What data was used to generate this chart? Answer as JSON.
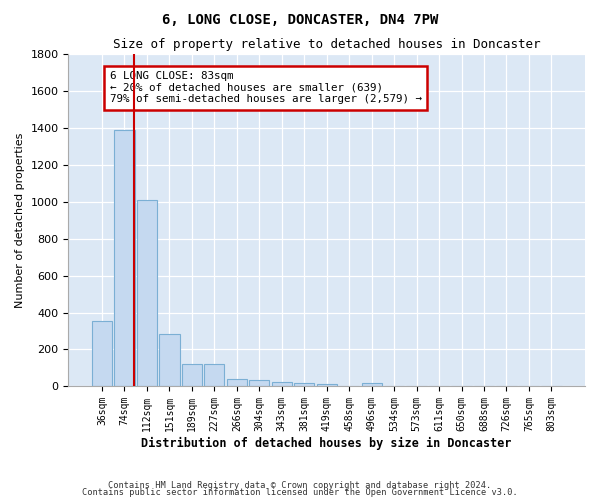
{
  "title": "6, LONG CLOSE, DONCASTER, DN4 7PW",
  "subtitle": "Size of property relative to detached houses in Doncaster",
  "xlabel": "Distribution of detached houses by size in Doncaster",
  "ylabel": "Number of detached properties",
  "categories": [
    "36sqm",
    "74sqm",
    "112sqm",
    "151sqm",
    "189sqm",
    "227sqm",
    "266sqm",
    "304sqm",
    "343sqm",
    "381sqm",
    "419sqm",
    "458sqm",
    "496sqm",
    "534sqm",
    "573sqm",
    "611sqm",
    "650sqm",
    "688sqm",
    "726sqm",
    "765sqm",
    "803sqm"
  ],
  "values": [
    355,
    1390,
    1010,
    285,
    120,
    120,
    38,
    35,
    25,
    18,
    15,
    0,
    20,
    0,
    0,
    0,
    0,
    0,
    0,
    0,
    0
  ],
  "bar_color": "#c5d9f0",
  "bar_edge_color": "#7bafd4",
  "red_line_x": 1.42,
  "annotation_text": "6 LONG CLOSE: 83sqm\n← 20% of detached houses are smaller (639)\n79% of semi-detached houses are larger (2,579) →",
  "annotation_box_color": "#ffffff",
  "annotation_box_edge": "#cc0000",
  "ylim": [
    0,
    1800
  ],
  "yticks": [
    0,
    200,
    400,
    600,
    800,
    1000,
    1200,
    1400,
    1600,
    1800
  ],
  "footnote1": "Contains HM Land Registry data © Crown copyright and database right 2024.",
  "footnote2": "Contains public sector information licensed under the Open Government Licence v3.0.",
  "bg_color": "#eef3fa",
  "plot_bg_color": "#dce8f5"
}
